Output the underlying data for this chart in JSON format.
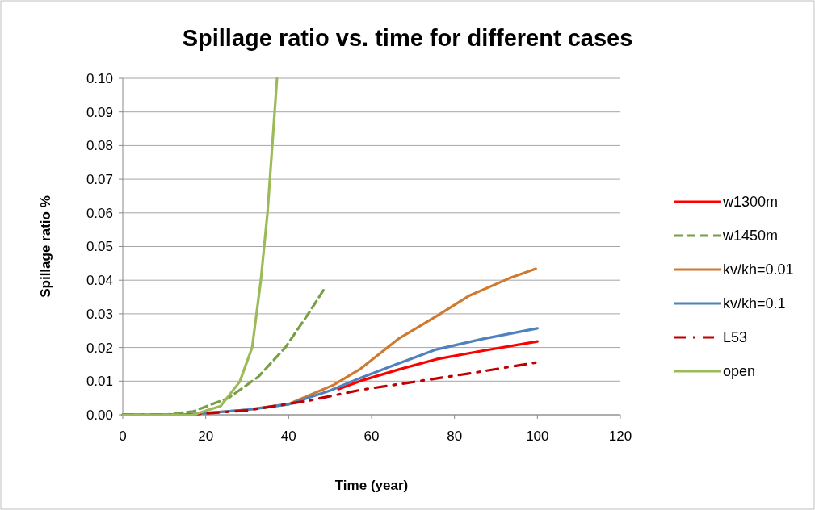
{
  "chart_data": {
    "type": "line",
    "title": "Spillage ratio vs. time for different cases",
    "xlabel": "Time (year)",
    "ylabel": "Spillage ratio %",
    "xlim": [
      0,
      120
    ],
    "xticks": [
      0,
      20,
      40,
      60,
      80,
      100,
      120
    ],
    "ylim": [
      0,
      0.1
    ],
    "yticks": [
      {
        "value": 0,
        "label": "0.00"
      },
      {
        "value": 0.01,
        "label": "0.01"
      },
      {
        "value": 0.02,
        "label": "0.02"
      },
      {
        "value": 0.03,
        "label": "0.03"
      },
      {
        "value": 0.04,
        "label": "0.04"
      },
      {
        "value": 0.05,
        "label": "0.05"
      },
      {
        "value": 0.06,
        "label": "0.06"
      },
      {
        "value": 0.07,
        "label": "0.07"
      },
      {
        "value": 0.08,
        "label": "0.08"
      },
      {
        "value": 0.09,
        "label": "0.09"
      },
      {
        "value": 0.1,
        "label": "0.10"
      }
    ],
    "grid": "y",
    "legend": "right",
    "marker": "none",
    "series": [
      {
        "name": "w1300m",
        "color": "#ff0000",
        "line_style": "solid",
        "x": [
          52,
          57.4,
          66.4,
          75.6,
          86.7,
          100
        ],
        "values": [
          0.0076,
          0.0101,
          0.0134,
          0.0165,
          0.019,
          0.0218
        ]
      },
      {
        "name": "w1450m",
        "color": "#77a044",
        "line_style": "dashed",
        "x": [
          0,
          10,
          17,
          25.5,
          32.7,
          39.2,
          45,
          48.9
        ],
        "values": [
          0,
          0,
          0.001,
          0.005,
          0.0113,
          0.02,
          0.0305,
          0.038
        ]
      },
      {
        "name": "kv/kh=0.01",
        "color": "#d07a30",
        "line_style": "solid",
        "x": [
          0,
          15,
          20,
          30,
          40,
          50.9,
          57.4,
          66.4,
          76.2,
          83.4,
          93.1,
          99.6
        ],
        "values": [
          0,
          0,
          0.0005,
          0.0015,
          0.0032,
          0.0089,
          0.0137,
          0.0225,
          0.0297,
          0.0353,
          0.0405,
          0.0434
        ]
      },
      {
        "name": "kv/kh=0.1",
        "color": "#4f81bd",
        "line_style": "solid",
        "x": [
          0,
          15,
          20,
          30,
          40,
          50,
          57.4,
          65.8,
          75.6,
          86.7,
          100
        ],
        "values": [
          0,
          0,
          0.0005,
          0.0015,
          0.0031,
          0.0072,
          0.011,
          0.0149,
          0.0194,
          0.0225,
          0.0257
        ]
      },
      {
        "name": "L53",
        "color": "#c00000",
        "line_style": "dashdot",
        "x": [
          0,
          15,
          20,
          30,
          44.4,
          57.4,
          70.4,
          84.7,
          100
        ],
        "values": [
          0,
          0,
          0.0004,
          0.0013,
          0.0041,
          0.0074,
          0.0098,
          0.0125,
          0.0156
        ]
      },
      {
        "name": "open",
        "color": "#9bbb59",
        "line_style": "solid",
        "x": [
          0,
          17,
          23.6,
          28.2,
          31.2,
          33.3,
          34.9,
          37.2
        ],
        "values": [
          0,
          0,
          0.0026,
          0.0098,
          0.02,
          0.04,
          0.06,
          0.1
        ]
      }
    ]
  }
}
